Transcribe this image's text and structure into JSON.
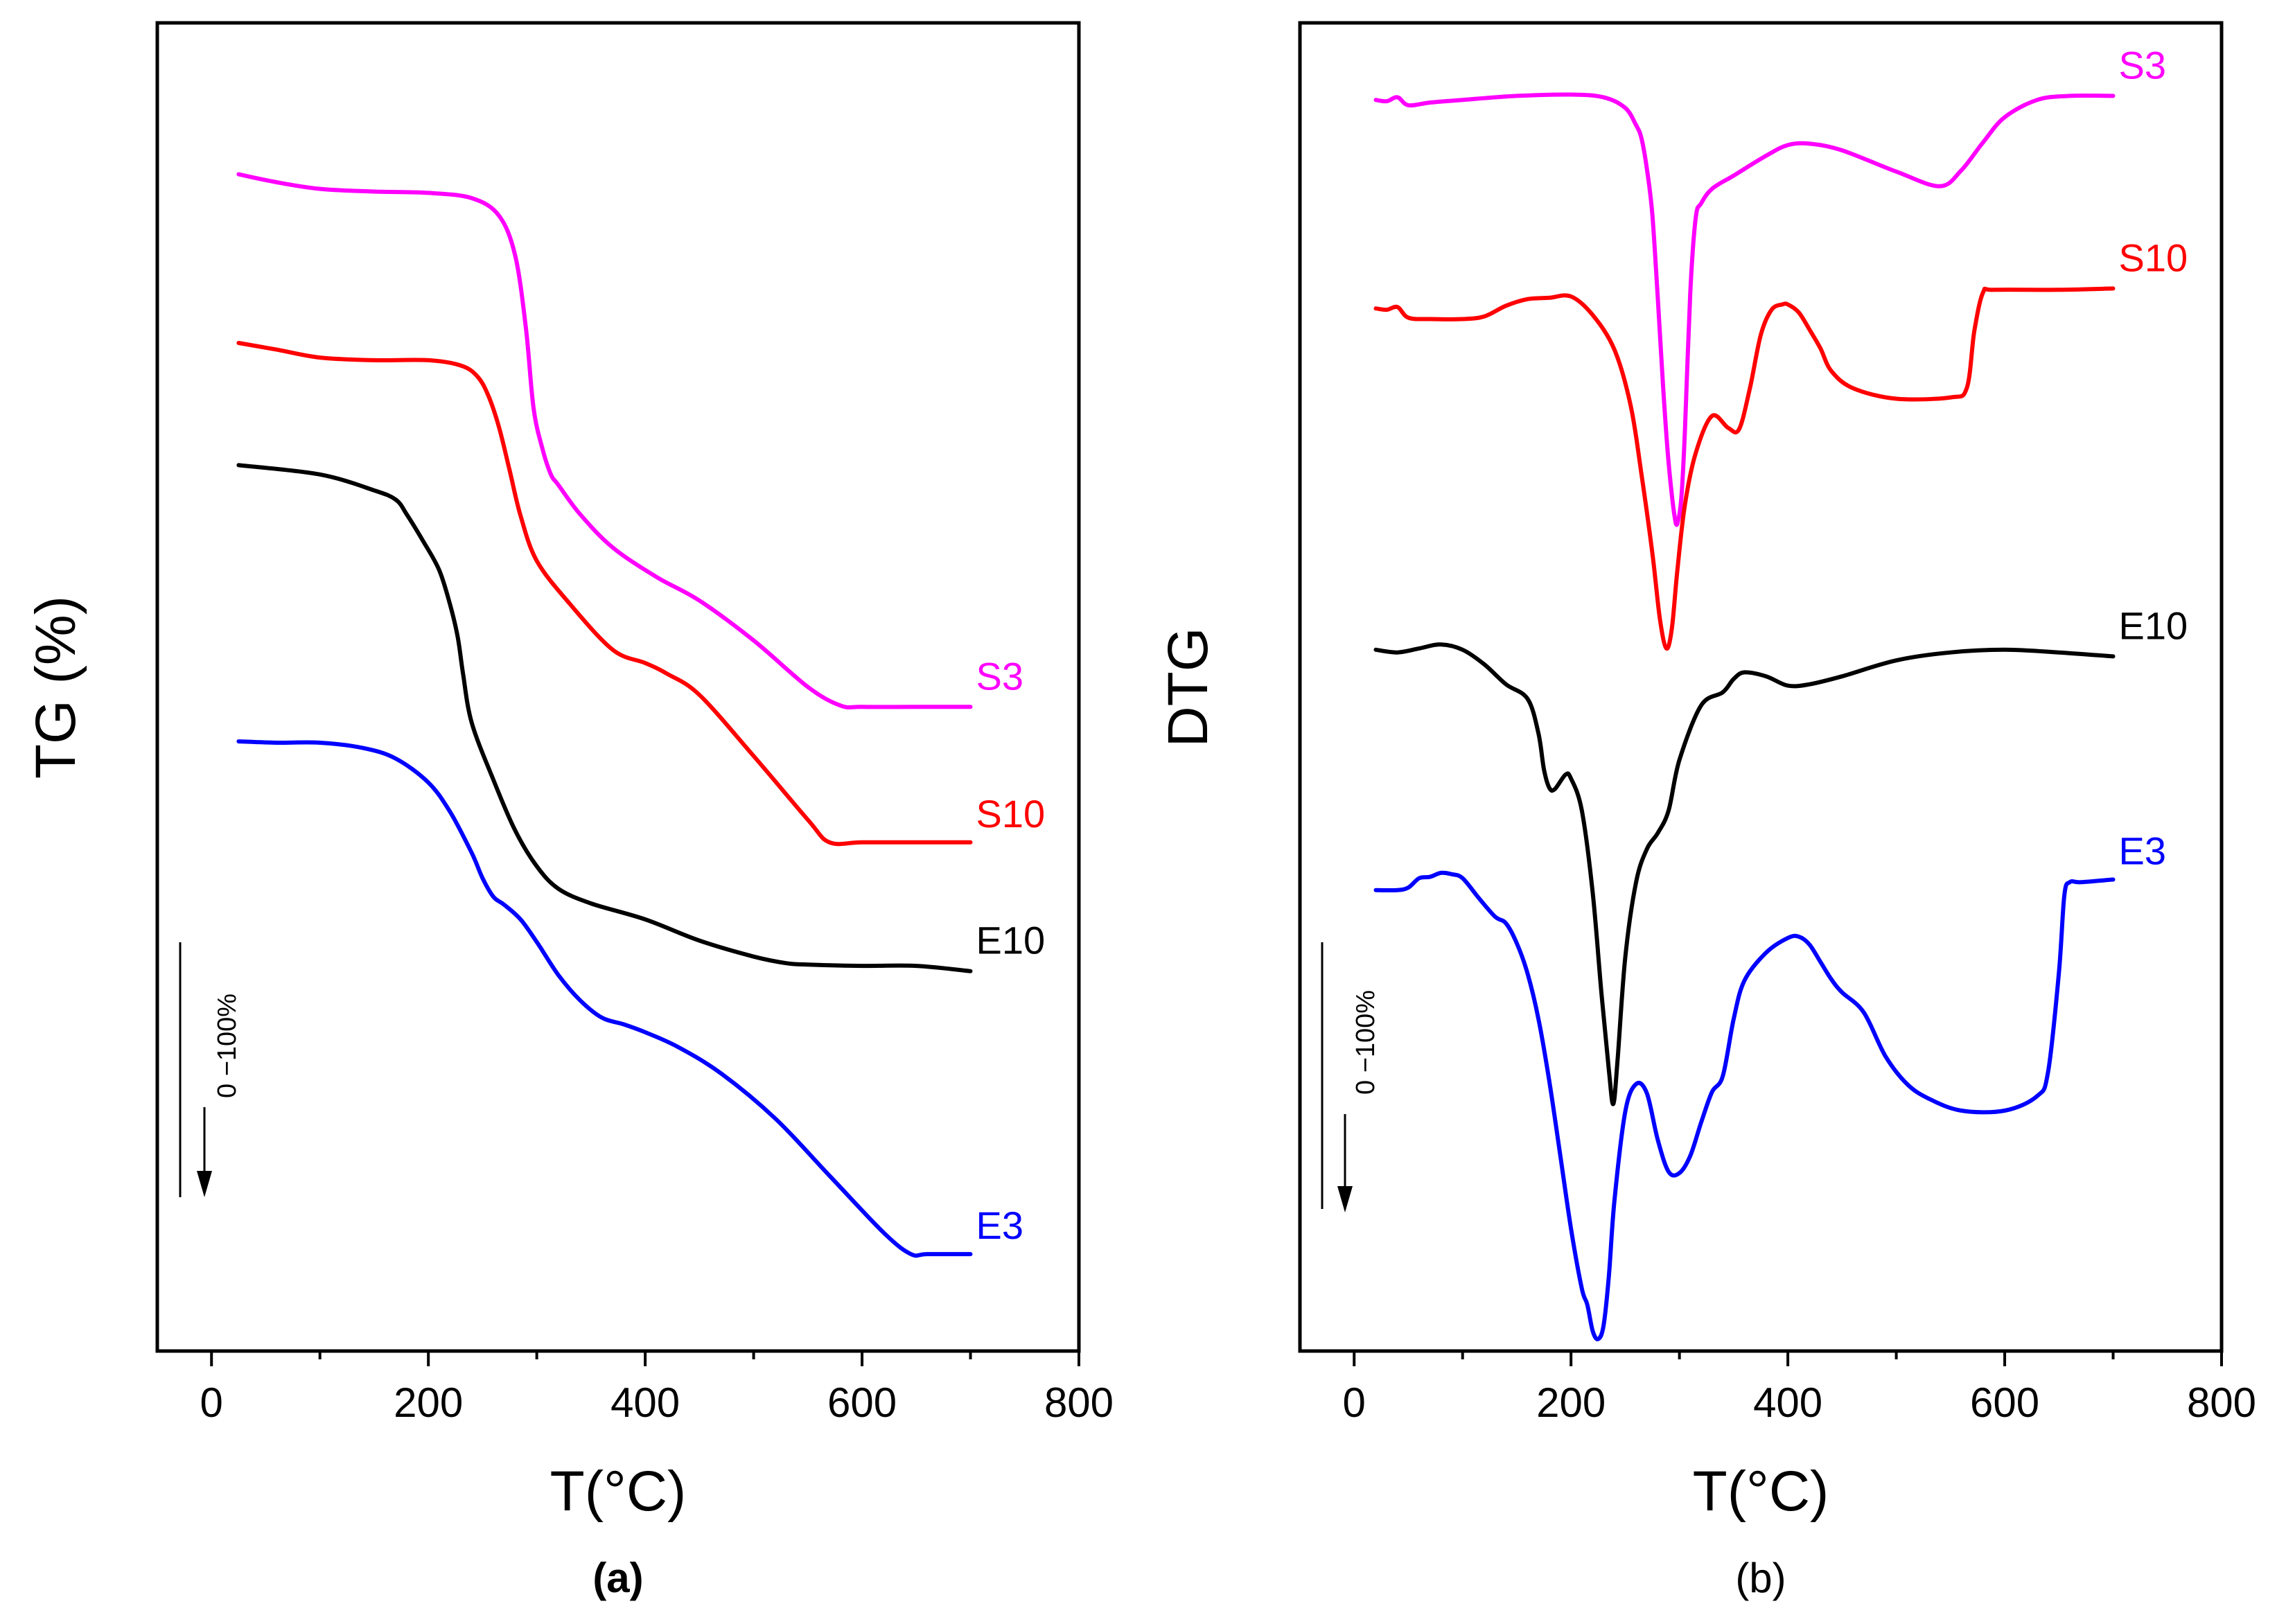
{
  "figure": {
    "panels": [
      {
        "id": "a",
        "label": "(a)",
        "label_bold": true,
        "scale_annotation": "0 −100%",
        "chart_index": 0
      },
      {
        "id": "b",
        "label": "(b)",
        "label_bold": false,
        "scale_annotation": "0 −100%",
        "chart_index": 1
      }
    ]
  },
  "chart_data": [
    {
      "type": "line",
      "title": "",
      "xlabel": "T(°C)",
      "ylabel": "TG (%)",
      "xlim": [
        -50,
        800
      ],
      "xticks": [
        0,
        200,
        400,
        600,
        800
      ],
      "ylim": [
        0,
        100
      ],
      "yticks_shown": false,
      "note": "curves are vertically offset; y in relative units (0 = bottom of plot, 100 = top)",
      "series": [
        {
          "name": "S3",
          "color": "#ff00ff",
          "x": [
            25,
            60,
            100,
            150,
            200,
            240,
            265,
            280,
            290,
            297,
            305,
            313,
            320,
            340,
            370,
            410,
            450,
            500,
            550,
            580,
            600,
            650,
            700
          ],
          "y": [
            88.6,
            88.0,
            87.5,
            87.3,
            87.2,
            86.8,
            85.5,
            82.5,
            77,
            71,
            68,
            66,
            65.2,
            63,
            60.5,
            58.3,
            56.5,
            53.5,
            50,
            48.6,
            48.5,
            48.5,
            48.5
          ]
        },
        {
          "name": "S10",
          "color": "#ff0000",
          "x": [
            25,
            60,
            100,
            150,
            200,
            230,
            245,
            255,
            265,
            275,
            285,
            300,
            330,
            370,
            400,
            420,
            450,
            500,
            550,
            570,
            600,
            650,
            700
          ],
          "y": [
            75.9,
            75.4,
            74.8,
            74.6,
            74.6,
            74.2,
            73.4,
            72,
            69.6,
            66.3,
            62.9,
            59.5,
            56.3,
            52.8,
            51.8,
            51,
            49.4,
            44.8,
            40,
            38.3,
            38.3,
            38.3,
            38.3
          ]
        },
        {
          "name": "E10",
          "color": "#000000",
          "x": [
            25,
            100,
            150,
            170,
            180,
            195,
            210,
            220,
            227,
            232,
            240,
            260,
            280,
            300,
            320,
            350,
            400,
            450,
            500,
            530,
            550,
            600,
            650,
            700
          ],
          "y": [
            66.7,
            66,
            64.8,
            64.1,
            63,
            61,
            58.8,
            56.2,
            53.8,
            51,
            47.3,
            43,
            39.2,
            36.5,
            34.8,
            33.7,
            32.5,
            30.9,
            29.7,
            29.2,
            29.1,
            29,
            29,
            28.6
          ]
        },
        {
          "name": "E3",
          "color": "#0000ff",
          "x": [
            25,
            60,
            100,
            140,
            170,
            200,
            220,
            240,
            250,
            260,
            270,
            285,
            300,
            320,
            340,
            360,
            380,
            400,
            430,
            470,
            520,
            570,
            620,
            645,
            660,
            700
          ],
          "y": [
            45.9,
            45.8,
            45.8,
            45.4,
            44.6,
            42.8,
            40.6,
            37.5,
            35.6,
            34.2,
            33.6,
            32.5,
            30.8,
            28.3,
            26.4,
            25.1,
            24.6,
            24,
            22.9,
            20.9,
            17.5,
            13.2,
            8.9,
            7.3,
            7.3,
            7.3
          ]
        }
      ],
      "legend": "inline labels at right end of each curve"
    },
    {
      "type": "line",
      "title": "",
      "xlabel": "T(°C)",
      "ylabel": "DTG",
      "xlim": [
        -50,
        800
      ],
      "xticks": [
        0,
        200,
        400,
        600,
        800
      ],
      "ylim": [
        0,
        100
      ],
      "yticks_shown": false,
      "note": "curves are vertically offset; y in relative units (0 = bottom of plot, 100 = top)",
      "series": [
        {
          "name": "S3",
          "color": "#ff00ff",
          "x": [
            20,
            30,
            40,
            50,
            70,
            100,
            150,
            200,
            230,
            250,
            260,
            265,
            270,
            275,
            280,
            285,
            290,
            296,
            299,
            302,
            305,
            310,
            315,
            320,
            330,
            350,
            380,
            400,
            420,
            450,
            500,
            540,
            560,
            580,
            600,
            630,
            660,
            700
          ],
          "y": [
            94.2,
            94.1,
            94.4,
            93.8,
            94,
            94.2,
            94.5,
            94.6,
            94.4,
            93.6,
            92.3,
            91.3,
            89,
            85.6,
            79.3,
            72.5,
            66.9,
            62.6,
            62.6,
            64.5,
            69.2,
            79.7,
            85.3,
            86.4,
            87.5,
            88.5,
            90,
            90.8,
            90.9,
            90.4,
            88.8,
            87.7,
            88.9,
            91,
            92.9,
            94.2,
            94.5,
            94.5
          ]
        },
        {
          "name": "S10",
          "color": "#ff0000",
          "x": [
            20,
            30,
            40,
            50,
            70,
            100,
            120,
            140,
            160,
            180,
            200,
            220,
            240,
            255,
            265,
            275,
            282,
            288,
            293,
            298,
            305,
            315,
            330,
            345,
            355,
            365,
            375,
            385,
            395,
            400,
            410,
            420,
            430,
            440,
            460,
            500,
            550,
            565,
            572,
            580,
            590,
            650,
            700
          ],
          "y": [
            78.5,
            78.4,
            78.6,
            77.8,
            77.7,
            77.7,
            77.9,
            78.7,
            79.2,
            79.3,
            79.4,
            78,
            75.4,
            71.2,
            66,
            60.1,
            55.1,
            52.9,
            54.4,
            58.7,
            63.7,
            67.6,
            70.4,
            69.5,
            69.4,
            72.5,
            76.5,
            78.4,
            78.8,
            78.8,
            78.2,
            76.9,
            75.5,
            73.8,
            72.5,
            71.7,
            71.8,
            72.5,
            76.8,
            79.7,
            79.9,
            79.9,
            80
          ]
        },
        {
          "name": "E10",
          "color": "#000000",
          "x": [
            20,
            40,
            60,
            80,
            100,
            120,
            140,
            160,
            170,
            175,
            180,
            185,
            195,
            200,
            210,
            220,
            228,
            235,
            239,
            243,
            250,
            260,
            270,
            280,
            290,
            300,
            320,
            340,
            350,
            360,
            380,
            400,
            420,
            450,
            500,
            550,
            600,
            650,
            700
          ],
          "y": [
            52.8,
            52.6,
            52.9,
            53.2,
            52.8,
            51.7,
            50.2,
            49.1,
            46.5,
            43.8,
            42.4,
            42.3,
            43.4,
            43.1,
            40.7,
            34.5,
            27,
            21.1,
            18.6,
            22,
            29.6,
            35.3,
            37.8,
            39,
            40.7,
            44.5,
            48.6,
            49.6,
            50.6,
            51.1,
            50.8,
            50.1,
            50.2,
            50.8,
            52,
            52.6,
            52.8,
            52.6,
            52.3
          ]
        },
        {
          "name": "E3",
          "color": "#0000ff",
          "x": [
            20,
            40,
            50,
            60,
            70,
            80,
            90,
            100,
            115,
            130,
            140,
            150,
            160,
            170,
            180,
            190,
            200,
            210,
            215,
            220,
            225,
            230,
            235,
            240,
            250,
            260,
            270,
            280,
            290,
            300,
            310,
            320,
            330,
            340,
            350,
            360,
            380,
            400,
            410,
            420,
            430,
            440,
            450,
            470,
            490,
            510,
            530,
            560,
            600,
            630,
            640,
            650,
            655,
            660,
            670,
            700
          ],
          "y": [
            34.7,
            34.7,
            34.9,
            35.6,
            35.7,
            36,
            35.9,
            35.6,
            34.1,
            32.7,
            32.2,
            30.7,
            28.4,
            25,
            20.3,
            14.8,
            9.2,
            4.7,
            3.5,
            1.5,
            0.9,
            1.9,
            5.7,
            11.3,
            18,
            20.1,
            19.4,
            15.9,
            13.5,
            13.4,
            14.7,
            17.2,
            19.5,
            20.7,
            25,
            27.9,
            30,
            31.1,
            31.2,
            30.6,
            29.3,
            28,
            27,
            25.5,
            22.2,
            20.1,
            19,
            18.1,
            18.1,
            19.2,
            21,
            28.5,
            34.3,
            35.3,
            35.3,
            35.5
          ]
        }
      ],
      "legend": "inline labels at right end of each curve"
    }
  ]
}
